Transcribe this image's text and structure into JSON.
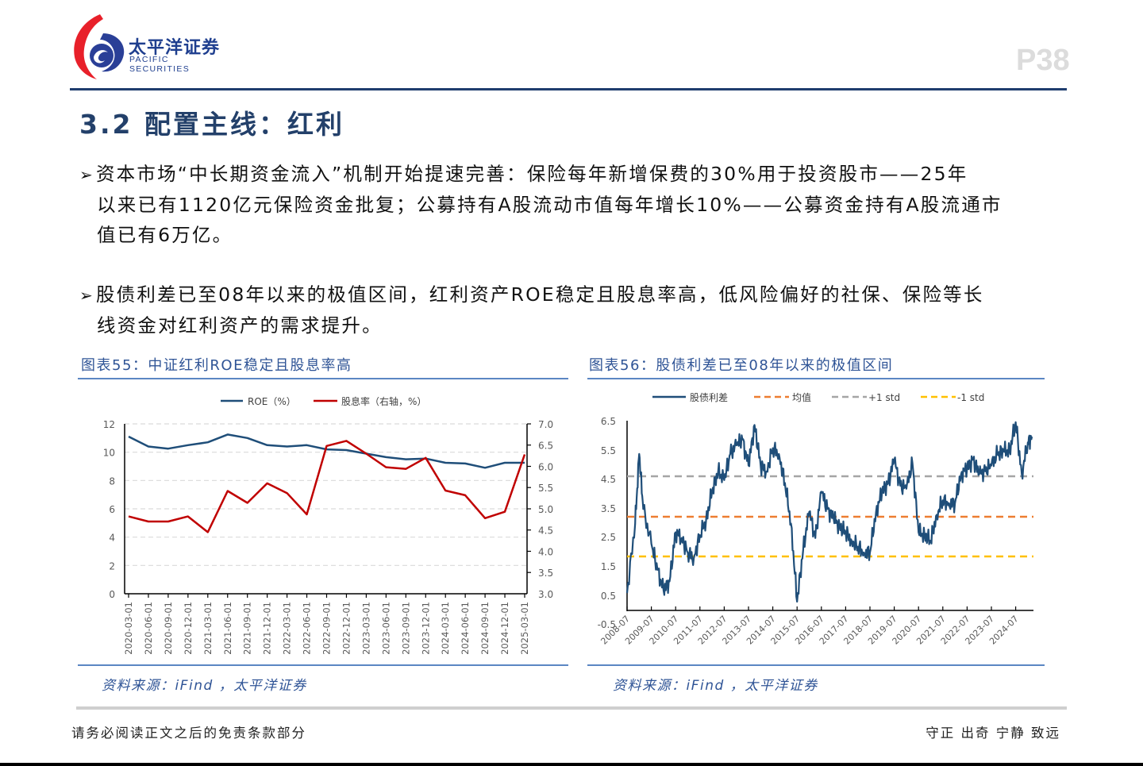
{
  "header": {
    "logo_cn": "太平洋证券",
    "logo_en": "PACIFIC SECURITIES",
    "page_number": "P38"
  },
  "section": {
    "title": "3.2 配置主线：红利"
  },
  "bullets": [
    {
      "marker": "➢",
      "lines": [
        "资本市场“中长期资金流入”机制开始提速完善：保险每年新增保费的30%用于投资股市——25年",
        "以来已有1120亿元保险资金批复；公募持有A股流动市值每年增长10%——公募资金持有A股流通市",
        "值已有6万亿。"
      ]
    },
    {
      "marker": "➢",
      "lines": [
        "股债利差已至08年以来的极值区间，红利资产ROE稳定且股息率高，低风险偏好的社保、保险等长",
        "线资金对红利资产的需求提升。"
      ]
    }
  ],
  "figures": [
    {
      "title": "图表55：中证红利ROE稳定且股息率高",
      "source": "资料来源：iFind ，太平洋证券",
      "legend": [
        "ROE（%）",
        "股息率（右轴，%）"
      ]
    },
    {
      "title": "图表56：股债利差已至08年以来的极值区间",
      "source": "资料来源：iFind ，太平洋证券",
      "legend": [
        "股债利差",
        "均值",
        "+1 std",
        "-1 std"
      ]
    }
  ],
  "footer": {
    "disclaimer": "请务必阅读正文之后的免责条款部分",
    "motto": "守正 出奇 宁静 致远"
  },
  "colors": {
    "brand_blue": "#1f3d6e",
    "figure_blue": "#2f5496",
    "roe_line": "#1f4e79",
    "dividend_line": "#c00000",
    "spread_line": "#1f4e79",
    "mean_line": "#ed7d31",
    "plus_std_line": "#a5a5a5",
    "minus_std_line": "#ffc000"
  },
  "chart_data": [
    {
      "type": "line",
      "title": "图表55：中证红利ROE稳定且股息率高",
      "categories": [
        "2020-03-01",
        "2020-06-01",
        "2020-09-01",
        "2020-12-01",
        "2021-03-01",
        "2021-06-01",
        "2021-09-01",
        "2021-12-01",
        "2022-03-01",
        "2022-06-01",
        "2022-09-01",
        "2022-12-01",
        "2023-03-01",
        "2023-06-01",
        "2023-09-01",
        "2023-12-01",
        "2024-03-01",
        "2024-06-01",
        "2024-09-01",
        "2024-12-01",
        "2025-03-01"
      ],
      "series": [
        {
          "name": "ROE（%）",
          "axis": "left",
          "color": "#1f4e79",
          "values": [
            11.1,
            10.4,
            10.25,
            10.5,
            10.7,
            11.25,
            11.0,
            10.5,
            10.4,
            10.5,
            10.2,
            10.15,
            9.9,
            9.65,
            9.5,
            9.55,
            9.25,
            9.2,
            8.9,
            9.25,
            9.25
          ]
        },
        {
          "name": "股息率（右轴，%）",
          "axis": "right",
          "color": "#c00000",
          "values": [
            4.82,
            4.7,
            4.7,
            4.82,
            4.45,
            5.42,
            5.14,
            5.6,
            5.37,
            4.87,
            6.48,
            6.6,
            6.3,
            5.98,
            5.94,
            6.2,
            5.43,
            5.32,
            4.78,
            4.93,
            6.28
          ]
        }
      ],
      "ylim": [
        0,
        12
      ],
      "yticks": [
        "0",
        "2",
        "4",
        "6",
        "8",
        "10",
        "12"
      ],
      "y2lim": [
        3.0,
        7.0
      ],
      "y2ticks": [
        "3.0",
        "3.5",
        "4.0",
        "4.5",
        "5.0",
        "5.5",
        "6.0",
        "6.5",
        "7.0"
      ],
      "xlabel": "",
      "ylabel": "",
      "grid": true,
      "legend_position": "top"
    },
    {
      "type": "line",
      "title": "图表56：股债利差已至08年以来的极值区间",
      "x_ticks": [
        "2008-07",
        "2009-07",
        "2010-07",
        "2011-07",
        "2012-07",
        "2013-07",
        "2014-07",
        "2015-07",
        "2016-07",
        "2017-07",
        "2018-07",
        "2019-07",
        "2020-07",
        "2021-07",
        "2022-07",
        "2023-07",
        "2024-07"
      ],
      "series": [
        {
          "name": "股债利差",
          "color": "#1f4e79",
          "x": [
            "2008-07",
            "2008-11",
            "2009-01",
            "2009-03",
            "2009-07",
            "2009-10",
            "2010-01",
            "2010-04",
            "2010-07",
            "2010-10",
            "2011-01",
            "2011-04",
            "2011-07",
            "2011-10",
            "2012-01",
            "2012-04",
            "2012-07",
            "2012-10",
            "2013-01",
            "2013-04",
            "2013-07",
            "2013-10",
            "2014-01",
            "2014-04",
            "2014-07",
            "2014-10",
            "2015-01",
            "2015-04",
            "2015-07",
            "2015-10",
            "2016-01",
            "2016-04",
            "2016-07",
            "2016-10",
            "2017-01",
            "2017-04",
            "2017-07",
            "2017-10",
            "2018-01",
            "2018-04",
            "2018-07",
            "2018-10",
            "2019-01",
            "2019-04",
            "2019-07",
            "2019-10",
            "2020-01",
            "2020-04",
            "2020-07",
            "2020-10",
            "2021-01",
            "2021-04",
            "2021-07",
            "2021-10",
            "2022-01",
            "2022-04",
            "2022-07",
            "2022-10",
            "2023-01",
            "2023-04",
            "2023-07",
            "2023-10",
            "2024-01",
            "2024-04",
            "2024-07",
            "2024-10",
            "2025-01",
            "2025-03"
          ],
          "values": [
            0.1,
            2.5,
            4.9,
            3.0,
            1.8,
            0.9,
            0.2,
            0.5,
            2.2,
            2.0,
            1.5,
            1.3,
            2.1,
            2.6,
            3.6,
            4.3,
            4.0,
            4.9,
            5.2,
            5.4,
            4.5,
            5.9,
            4.5,
            4.3,
            5.1,
            4.9,
            3.9,
            2.5,
            -0.2,
            1.6,
            2.9,
            2.0,
            3.6,
            3.0,
            2.7,
            2.4,
            2.2,
            1.9,
            1.7,
            1.5,
            1.5,
            2.9,
            3.6,
            3.9,
            4.7,
            3.8,
            3.7,
            4.6,
            2.2,
            2.1,
            1.9,
            2.8,
            3.3,
            3.2,
            3.2,
            4.2,
            4.4,
            4.7,
            4.2,
            4.3,
            4.5,
            4.9,
            5.0,
            5.0,
            6.0,
            4.2,
            5.3,
            5.5
          ]
        },
        {
          "name": "均值",
          "color": "#ed7d31",
          "constant": 3.2
        },
        {
          "name": "+1 std",
          "color": "#a5a5a5",
          "constant": 4.6
        },
        {
          "name": "-1 std",
          "color": "#ffc000",
          "constant": 1.8
        }
      ],
      "ylim": [
        -0.5,
        6.5
      ],
      "yticks": [
        "-0.5",
        "0.5",
        "1.5",
        "2.5",
        "3.5",
        "4.5",
        "5.5",
        "6.5"
      ],
      "xlabel": "",
      "ylabel": "",
      "grid": false,
      "legend_position": "top"
    }
  ]
}
